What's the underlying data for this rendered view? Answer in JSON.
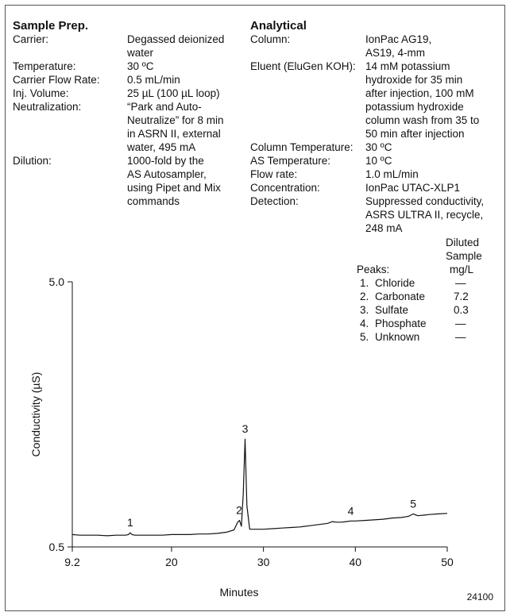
{
  "sample_prep": {
    "title": "Sample Prep.",
    "rows": [
      {
        "label": "Carrier:",
        "lines": [
          "Degassed deionized",
          "water"
        ]
      },
      {
        "label": "Temperature:",
        "lines": [
          "30 ºC"
        ]
      },
      {
        "label": "Carrier Flow Rate:",
        "lines": [
          "0.5 mL/min"
        ]
      },
      {
        "label": "Inj. Volume:",
        "lines": [
          "25 µL (100 µL loop)"
        ]
      },
      {
        "label": "Neutralization:",
        "lines": [
          "“Park and Auto-",
          "Neutralize” for 8 min",
          "in ASRN II, external",
          "water, 495 mA"
        ]
      },
      {
        "label": "Dilution:",
        "lines": [
          "1000-fold by the",
          "AS Autosampler,",
          "using Pipet and Mix",
          "commands"
        ]
      }
    ]
  },
  "analytical": {
    "title": "Analytical",
    "rows": [
      {
        "label": "Column:",
        "lines": [
          "IonPac AG19,",
          "AS19, 4-mm"
        ]
      },
      {
        "label": "Eluent (EluGen KOH):",
        "lines": [
          "14 mM potassium",
          "hydroxide for 35 min",
          "after injection, 100 mM",
          "potassium hydroxide",
          "column wash from 35 to",
          "50 min after injection"
        ]
      },
      {
        "label": "Column Temperature:",
        "lines": [
          "30 ºC"
        ]
      },
      {
        "label": "AS Temperature:",
        "lines": [
          "10 ºC"
        ]
      },
      {
        "label": "Flow rate:",
        "lines": [
          "1.0 mL/min"
        ]
      },
      {
        "label": "Concentration:",
        "lines": [
          "IonPac UTAC-XLP1"
        ]
      },
      {
        "label": "Detection:",
        "lines": [
          "Suppressed conductivity,",
          "ASRS ULTRA II, recycle,",
          "248 mA"
        ]
      }
    ]
  },
  "peaks_table": {
    "header_col1": "Peaks:",
    "header_col2_lines": [
      "Diluted",
      "Sample",
      "mg/L"
    ],
    "rows": [
      {
        "num": "1.",
        "name": "Chloride",
        "value": "—"
      },
      {
        "num": "2.",
        "name": "Carbonate",
        "value": "7.2"
      },
      {
        "num": "3.",
        "name": "Sulfate",
        "value": "0.3"
      },
      {
        "num": "4.",
        "name": "Phosphate",
        "value": "—"
      },
      {
        "num": "5.",
        "name": "Unknown",
        "value": "—"
      }
    ]
  },
  "figure_id": "24100",
  "chart_data": {
    "type": "line",
    "xlabel": "Minutes",
    "ylabel": "Conductivity (µS)",
    "xlim": [
      9.2,
      50
    ],
    "ylim": [
      0.5,
      5.0
    ],
    "x_ticks": [
      9.2,
      20,
      30,
      40,
      50
    ],
    "x_tick_labels": [
      "9.2",
      "20",
      "30",
      "40",
      "50"
    ],
    "y_ticks": [
      0.5,
      5.0
    ],
    "y_tick_labels": [
      "0.5",
      "5.0"
    ],
    "line_color": "#111111",
    "series": [
      {
        "x": [
          9.2,
          10,
          11,
          12,
          13,
          14,
          15,
          15.3,
          15.5,
          15.7,
          16,
          17,
          18,
          19,
          20,
          21,
          22,
          23,
          24,
          25,
          26,
          26.8,
          27.2,
          27.4,
          27.6,
          27.8,
          28.0,
          28.2,
          28.5,
          29,
          30,
          31,
          32,
          33,
          34,
          35,
          36,
          37,
          37.5,
          38,
          38.5,
          39,
          39.5,
          40,
          41,
          42,
          43,
          44,
          45,
          45.8,
          46.3,
          46.8,
          47.5,
          48,
          49,
          50
        ],
        "y": [
          0.71,
          0.7,
          0.7,
          0.7,
          0.69,
          0.7,
          0.7,
          0.71,
          0.74,
          0.71,
          0.7,
          0.7,
          0.7,
          0.7,
          0.71,
          0.71,
          0.71,
          0.72,
          0.72,
          0.73,
          0.75,
          0.79,
          0.92,
          0.95,
          0.85,
          1.4,
          2.33,
          1.2,
          0.8,
          0.8,
          0.8,
          0.81,
          0.82,
          0.83,
          0.84,
          0.86,
          0.88,
          0.9,
          0.93,
          0.92,
          0.92,
          0.93,
          0.94,
          0.94,
          0.95,
          0.96,
          0.97,
          0.99,
          1.0,
          1.02,
          1.06,
          1.03,
          1.04,
          1.05,
          1.06,
          1.07
        ]
      }
    ],
    "peak_labels": [
      {
        "label": "1",
        "x": 15.5,
        "y": 0.74
      },
      {
        "label": "2",
        "x": 27.35,
        "y": 0.95
      },
      {
        "label": "3",
        "x": 28.0,
        "y": 2.33
      },
      {
        "label": "4",
        "x": 39.5,
        "y": 0.94
      },
      {
        "label": "5",
        "x": 46.3,
        "y": 1.06
      }
    ]
  }
}
